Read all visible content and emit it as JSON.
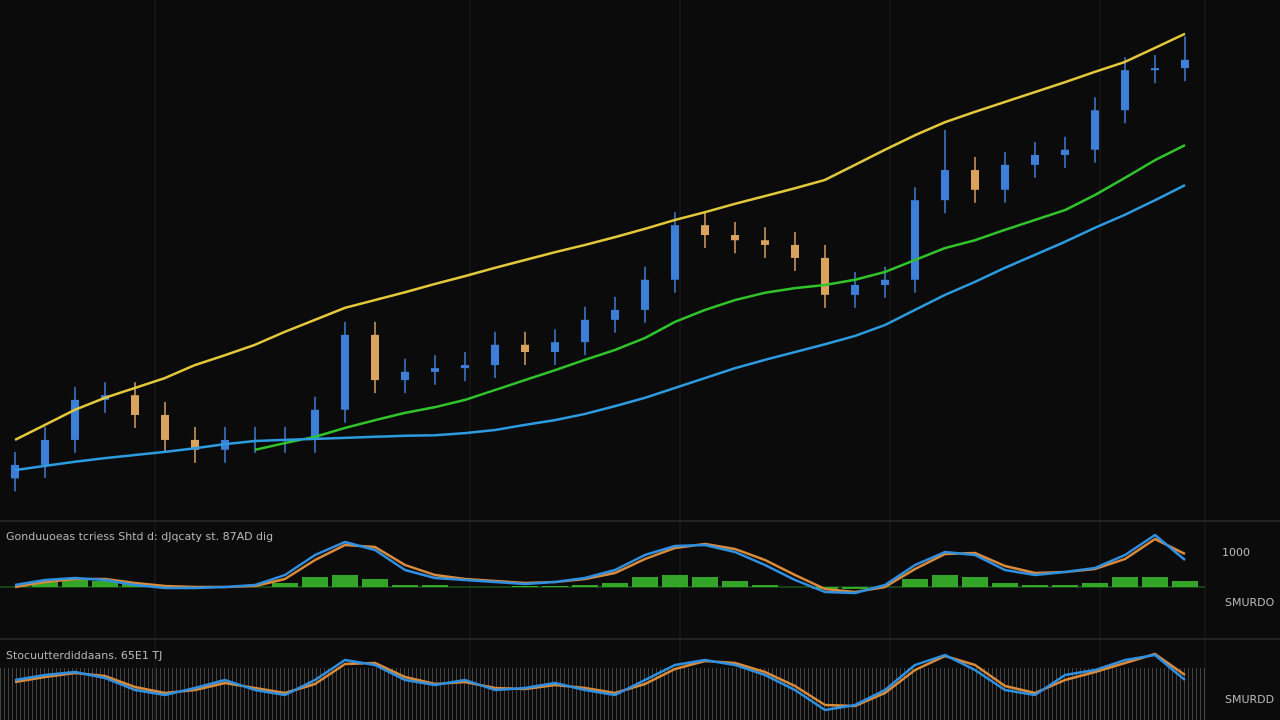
{
  "chart_data": [
    {
      "type": "candlestick",
      "up_color": "#3d7fd6",
      "down_color": "#d9a35e",
      "ylim": [
        0,
        100
      ],
      "open": [
        8.0,
        10.6,
        15.4,
        23.1,
        24.0,
        20.2,
        15.4,
        13.5,
        15.4,
        15.4,
        15.4,
        21.2,
        35.6,
        26.9,
        28.5,
        29.2,
        29.8,
        33.7,
        32.3,
        34.2,
        38.5,
        40.4,
        46.2,
        56.7,
        54.8,
        53.8,
        52.9,
        50.4,
        43.3,
        45.2,
        46.2,
        61.5,
        67.3,
        63.5,
        68.3,
        70.2,
        71.2,
        78.8,
        86.5,
        86.9
      ],
      "high": [
        13.1,
        17.9,
        25.6,
        26.5,
        26.5,
        22.7,
        17.9,
        17.9,
        17.9,
        17.9,
        23.7,
        38.1,
        38.1,
        31.0,
        31.7,
        32.3,
        36.2,
        36.2,
        36.7,
        41.0,
        42.9,
        48.7,
        59.2,
        59.2,
        57.3,
        56.3,
        55.4,
        52.9,
        47.7,
        48.7,
        64.0,
        75.0,
        69.8,
        70.8,
        72.7,
        73.7,
        81.3,
        89.0,
        89.4,
        93.0
      ],
      "low": [
        5.5,
        8.1,
        12.9,
        20.6,
        17.7,
        12.9,
        11.0,
        11.0,
        12.9,
        12.9,
        12.9,
        18.7,
        24.4,
        24.4,
        26.0,
        26.7,
        27.3,
        29.8,
        29.8,
        31.7,
        36.0,
        37.9,
        43.7,
        52.3,
        51.3,
        50.4,
        47.9,
        40.8,
        40.8,
        42.7,
        43.7,
        59.0,
        61.0,
        61.0,
        65.8,
        67.7,
        68.7,
        76.3,
        84.0,
        84.4
      ],
      "close": [
        10.6,
        15.4,
        23.1,
        24.0,
        20.2,
        15.4,
        13.5,
        15.4,
        15.4,
        15.4,
        21.2,
        35.6,
        26.9,
        28.5,
        29.2,
        29.8,
        33.7,
        32.3,
        34.2,
        38.5,
        40.4,
        46.2,
        56.7,
        54.8,
        53.8,
        52.9,
        50.4,
        43.3,
        45.2,
        46.2,
        61.5,
        67.3,
        63.5,
        68.3,
        70.2,
        71.2,
        78.8,
        86.5,
        86.9,
        88.5
      ],
      "series": [
        {
          "color": "#e3c93a",
          "values": [
            15.4,
            18.3,
            21.2,
            23.5,
            25.4,
            27.3,
            29.8,
            31.7,
            33.7,
            36.2,
            38.5,
            40.8,
            42.3,
            43.8,
            45.4,
            46.9,
            48.5,
            50.0,
            51.5,
            52.9,
            54.4,
            56.0,
            57.7,
            59.2,
            60.8,
            62.3,
            63.8,
            65.4,
            68.3,
            71.2,
            74.0,
            76.5,
            78.5,
            80.4,
            82.3,
            84.2,
            86.2,
            88.1,
            90.8,
            93.5
          ]
        },
        {
          "color": "#2fc42a",
          "values": [
            null,
            null,
            null,
            null,
            null,
            null,
            null,
            null,
            13.5,
            14.8,
            16.0,
            17.7,
            19.2,
            20.6,
            21.7,
            23.1,
            25.0,
            26.9,
            28.8,
            30.8,
            32.7,
            35.0,
            38.1,
            40.4,
            42.3,
            43.7,
            44.6,
            45.2,
            46.2,
            47.7,
            50.0,
            52.3,
            53.8,
            55.8,
            57.7,
            59.6,
            62.5,
            65.8,
            69.2,
            72.1
          ]
        },
        {
          "color": "#2c9be0",
          "values": [
            9.6,
            10.4,
            11.2,
            11.9,
            12.5,
            13.1,
            13.8,
            14.6,
            15.2,
            15.4,
            15.6,
            15.8,
            16.0,
            16.2,
            16.3,
            16.7,
            17.3,
            18.3,
            19.2,
            20.4,
            21.9,
            23.5,
            25.4,
            27.3,
            29.2,
            30.8,
            32.3,
            33.8,
            35.4,
            37.5,
            40.4,
            43.3,
            45.8,
            48.5,
            51.0,
            53.5,
            56.2,
            58.7,
            61.5,
            64.4
          ]
        }
      ]
    },
    {
      "type": "line",
      "title": "Gonduuoeas tcriess   Shtd d: dJqcaty st.  87AD dig",
      "annotations": [
        "1000",
        "SMURDO"
      ],
      "ylim": [
        -50,
        60
      ],
      "histogram": {
        "color": "#3bbf2e",
        "values": [
          0,
          6,
          8,
          6,
          3,
          0,
          0,
          0,
          0,
          4,
          10,
          12,
          8,
          2,
          2,
          0,
          0,
          1,
          1,
          2,
          4,
          10,
          12,
          10,
          6,
          2,
          0,
          -2,
          -2,
          0,
          8,
          12,
          10,
          4,
          2,
          2,
          4,
          10,
          10,
          6
        ]
      },
      "series": [
        {
          "color": "#d98b3a",
          "values": [
            0,
            5,
            8,
            8,
            4,
            1,
            0,
            0,
            1,
            8,
            27,
            42,
            40,
            22,
            12,
            8,
            6,
            4,
            5,
            8,
            14,
            28,
            39,
            43,
            38,
            27,
            12,
            -2,
            -5,
            0,
            18,
            33,
            34,
            21,
            14,
            15,
            18,
            28,
            48,
            33
          ]
        },
        {
          "color": "#2f8fe0",
          "values": [
            2,
            7,
            9,
            7,
            2,
            -1,
            -1,
            0,
            2,
            12,
            32,
            45,
            37,
            17,
            9,
            7,
            5,
            3,
            5,
            9,
            17,
            32,
            41,
            42,
            35,
            22,
            7,
            -5,
            -6,
            2,
            22,
            35,
            32,
            17,
            12,
            15,
            19,
            32,
            52,
            27
          ]
        }
      ]
    },
    {
      "type": "line",
      "title": "Stocuutterdiddaans.  65E1 TJ",
      "annotations": [
        "SMURDD"
      ],
      "ylim": [
        -30,
        45
      ],
      "series": [
        {
          "color": "#d98b3a",
          "values": [
            8,
            13,
            17,
            14,
            3,
            -3,
            0,
            7,
            2,
            -3,
            6,
            26,
            27,
            13,
            6,
            8,
            2,
            1,
            5,
            2,
            -3,
            6,
            21,
            29,
            27,
            18,
            4,
            -15,
            -16,
            -3,
            20,
            34,
            25,
            4,
            -3,
            10,
            18,
            27,
            36,
            15
          ]
        },
        {
          "color": "#2f8fe0",
          "values": [
            10,
            15,
            18,
            12,
            0,
            -5,
            2,
            10,
            0,
            -5,
            10,
            30,
            25,
            10,
            5,
            10,
            0,
            2,
            7,
            0,
            -5,
            10,
            25,
            30,
            25,
            15,
            0,
            -20,
            -15,
            0,
            25,
            35,
            20,
            0,
            -5,
            15,
            20,
            30,
            35,
            10
          ]
        }
      ]
    }
  ]
}
